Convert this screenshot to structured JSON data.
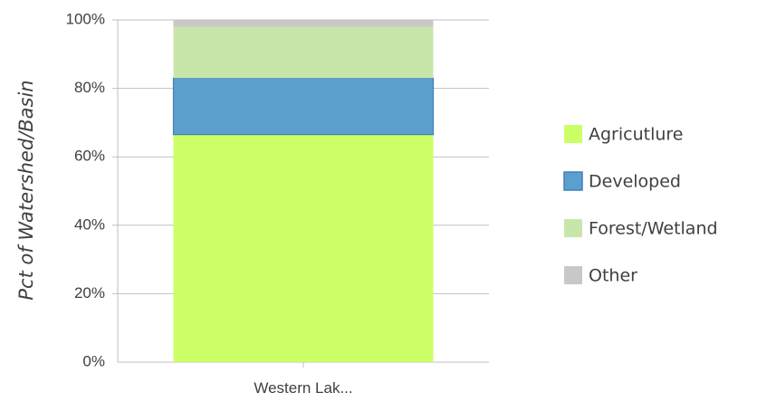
{
  "chart_data": {
    "type": "bar",
    "stacked": true,
    "categories": [
      "Western Lak..."
    ],
    "series": [
      {
        "name": "Agricutlure",
        "values": [
          66.5
        ],
        "color": "#ccff66"
      },
      {
        "name": "Developed",
        "values": [
          16.5
        ],
        "color": "#5b9fcf"
      },
      {
        "name": "Forest/Wetland",
        "values": [
          15.0
        ],
        "color": "#c8e6aa"
      },
      {
        "name": "Other",
        "values": [
          2.0
        ],
        "color": "#c8c8c8"
      }
    ],
    "ylabel": "Pct of Watershed/Basin",
    "ylim": [
      0,
      100
    ],
    "yticks": [
      "0%",
      "20%",
      "40%",
      "60%",
      "80%",
      "100%"
    ],
    "grid": true,
    "legend_position": "right"
  }
}
